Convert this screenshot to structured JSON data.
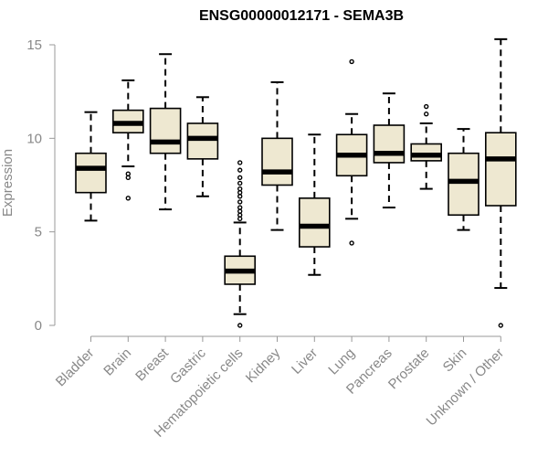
{
  "chart_data": {
    "type": "boxplot",
    "title": "ENSG00000012171 - SEMA3B",
    "ylabel": "Expression",
    "xlabel": "",
    "ylim": [
      0,
      15
    ],
    "yticks": [
      0,
      5,
      10,
      15
    ],
    "box_color": "#EEE8D1",
    "grid": false,
    "categories": [
      "Bladder",
      "Brain",
      "Breast",
      "Gastric",
      "Hematopoietic cells",
      "Kidney",
      "Liver",
      "Lung",
      "Pancreas",
      "Prostate",
      "Skin",
      "Unknown / Other"
    ],
    "boxes": [
      {
        "min": 5.6,
        "q1": 7.1,
        "median": 8.4,
        "q3": 9.2,
        "max": 11.4,
        "outliers": []
      },
      {
        "min": 8.5,
        "q1": 10.3,
        "median": 10.8,
        "q3": 11.5,
        "max": 13.1,
        "outliers": [
          6.8,
          7.9,
          8.1
        ]
      },
      {
        "min": 6.2,
        "q1": 9.2,
        "median": 9.8,
        "q3": 11.6,
        "max": 14.5,
        "outliers": []
      },
      {
        "min": 6.9,
        "q1": 8.9,
        "median": 10.0,
        "q3": 10.8,
        "max": 12.2,
        "outliers": []
      },
      {
        "min": 0.6,
        "q1": 2.2,
        "median": 2.9,
        "q3": 3.7,
        "max": 5.5,
        "outliers": [
          0.0,
          5.7,
          5.9,
          6.1,
          6.3,
          6.6,
          6.9,
          7.1,
          7.3,
          7.6,
          7.9,
          8.3,
          8.7
        ]
      },
      {
        "min": 5.1,
        "q1": 7.5,
        "median": 8.2,
        "q3": 10.0,
        "max": 13.0,
        "outliers": []
      },
      {
        "min": 2.7,
        "q1": 4.2,
        "median": 5.3,
        "q3": 6.8,
        "max": 10.2,
        "outliers": []
      },
      {
        "min": 5.7,
        "q1": 8.0,
        "median": 9.1,
        "q3": 10.2,
        "max": 11.3,
        "outliers": [
          4.4,
          14.1
        ]
      },
      {
        "min": 6.3,
        "q1": 8.7,
        "median": 9.2,
        "q3": 10.7,
        "max": 12.4,
        "outliers": []
      },
      {
        "min": 7.3,
        "q1": 8.8,
        "median": 9.1,
        "q3": 9.7,
        "max": 10.8,
        "outliers": [
          11.3,
          11.7
        ]
      },
      {
        "min": 5.1,
        "q1": 5.9,
        "median": 7.7,
        "q3": 9.2,
        "max": 10.5,
        "outliers": []
      },
      {
        "min": 2.0,
        "q1": 6.4,
        "median": 8.9,
        "q3": 10.3,
        "max": 15.3,
        "outliers": [
          0.0
        ]
      }
    ]
  }
}
